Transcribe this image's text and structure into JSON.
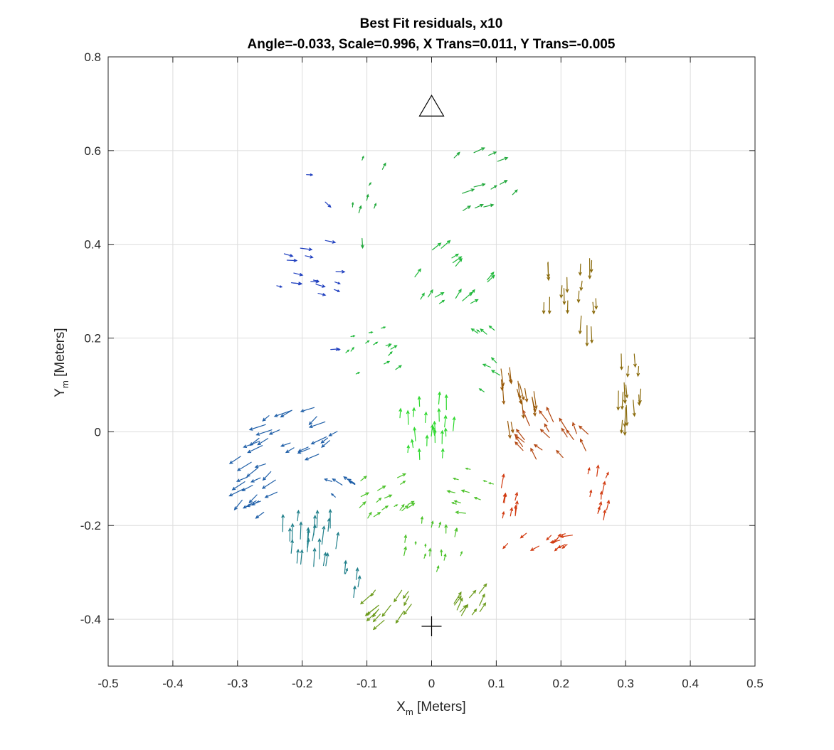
{
  "chart_data": {
    "type": "quiver",
    "title": "Best Fit residuals, x10",
    "subtitle": "Angle=-0.033, Scale=0.996, X Trans=0.011, Y Trans=-0.005",
    "xlabel_main": "X",
    "xlabel_sub": "m",
    "xlabel_unit": " [Meters]",
    "ylabel_main": "Y",
    "ylabel_sub": "m",
    "ylabel_unit": " [Meters]",
    "xlim": [
      -0.5,
      0.5
    ],
    "ylim": [
      -0.5,
      0.8
    ],
    "grid": true,
    "x_ticks": [
      -0.5,
      -0.4,
      -0.3,
      -0.2,
      -0.1,
      0,
      0.1,
      0.2,
      0.3,
      0.4,
      0.5
    ],
    "x_tick_labels": [
      "-0.5",
      "-0.4",
      "-0.3",
      "-0.2",
      "-0.1",
      "0",
      "0.1",
      "0.2",
      "0.3",
      "0.4",
      "0.5"
    ],
    "y_ticks": [
      -0.4,
      -0.2,
      0,
      0.2,
      0.4,
      0.6,
      0.8
    ],
    "y_tick_labels": [
      "-0.4",
      "-0.2",
      "0",
      "0.2",
      "0.4",
      "0.6",
      "0.8"
    ],
    "markers": [
      {
        "shape": "triangle",
        "x": 0.0,
        "y": 0.695,
        "color": "#000000"
      },
      {
        "shape": "plus",
        "x": 0.0,
        "y": -0.415,
        "color": "#000000"
      }
    ],
    "clusters": [
      {
        "color": "#1f3fbf",
        "cx": -0.195,
        "cy": 0.35,
        "rx": 0.07,
        "ry": 0.07,
        "du": 0.012,
        "dv": -0.002,
        "n": 16
      },
      {
        "color": "#1f3fbf",
        "cx": -0.16,
        "cy": 0.17,
        "rx": 0.015,
        "ry": 0.008,
        "du": 0.01,
        "dv": 0.0,
        "n": 2
      },
      {
        "color": "#1f3fbf",
        "cx": -0.19,
        "cy": 0.54,
        "rx": 0.01,
        "ry": 0.01,
        "du": 0.01,
        "dv": 0.0,
        "n": 1
      },
      {
        "color": "#1f3fbf",
        "cx": -0.17,
        "cy": 0.49,
        "rx": 0.01,
        "ry": 0.01,
        "du": 0.006,
        "dv": -0.008,
        "n": 1
      },
      {
        "color": "#1fa83a",
        "cx": -0.095,
        "cy": 0.52,
        "rx": 0.035,
        "ry": 0.08,
        "du": 0.003,
        "dv": 0.008,
        "n": 7
      },
      {
        "color": "#1fa83a",
        "cx": -0.11,
        "cy": 0.41,
        "rx": 0.01,
        "ry": 0.01,
        "du": 0.0,
        "dv": -0.012,
        "n": 1
      },
      {
        "color": "#1fa83a",
        "cx": 0.09,
        "cy": 0.53,
        "rx": 0.09,
        "ry": 0.07,
        "du": 0.012,
        "dv": 0.006,
        "n": 12
      },
      {
        "color": "#1fb83a",
        "cx": 0.03,
        "cy": 0.33,
        "rx": 0.07,
        "ry": 0.07,
        "du": 0.01,
        "dv": 0.01,
        "n": 16
      },
      {
        "color": "#1fb83a",
        "cx": -0.085,
        "cy": 0.16,
        "rx": 0.05,
        "ry": 0.09,
        "du": 0.006,
        "dv": 0.004,
        "n": 14
      },
      {
        "color": "#1fb83a",
        "cx": 0.08,
        "cy": 0.16,
        "rx": 0.03,
        "ry": 0.08,
        "du": -0.008,
        "dv": 0.006,
        "n": 8
      },
      {
        "color": "#2ed82e",
        "cx": 0.0,
        "cy": 0.0,
        "rx": 0.06,
        "ry": 0.065,
        "du": 0.0,
        "dv": 0.015,
        "n": 22
      },
      {
        "color": "#4cc22a",
        "cx": -0.085,
        "cy": -0.135,
        "rx": 0.06,
        "ry": 0.06,
        "du": 0.008,
        "dv": 0.006,
        "n": 16
      },
      {
        "color": "#4cc22a",
        "cx": 0.065,
        "cy": -0.13,
        "rx": 0.035,
        "ry": 0.055,
        "du": -0.01,
        "dv": 0.003,
        "n": 10
      },
      {
        "color": "#4cc22a",
        "cx": 0.0,
        "cy": -0.245,
        "rx": 0.055,
        "ry": 0.055,
        "du": 0.002,
        "dv": 0.01,
        "n": 16
      },
      {
        "color": "#6a9a1a",
        "cx": -0.065,
        "cy": -0.36,
        "rx": 0.035,
        "ry": 0.045,
        "du": -0.012,
        "dv": -0.014,
        "n": 14
      },
      {
        "color": "#6a9a1a",
        "cx": 0.055,
        "cy": -0.36,
        "rx": 0.025,
        "ry": 0.05,
        "du": 0.01,
        "dv": 0.014,
        "n": 10
      },
      {
        "color": "#1f5fa8",
        "cx": -0.2,
        "cy": 0.0,
        "rx": 0.075,
        "ry": 0.055,
        "du": -0.018,
        "dv": -0.008,
        "n": 22
      },
      {
        "color": "#1f5fa8",
        "cx": -0.28,
        "cy": -0.11,
        "rx": 0.05,
        "ry": 0.07,
        "du": -0.016,
        "dv": -0.01,
        "n": 18
      },
      {
        "color": "#1f5fa8",
        "cx": -0.14,
        "cy": -0.12,
        "rx": 0.025,
        "ry": 0.04,
        "du": -0.012,
        "dv": 0.008,
        "n": 6
      },
      {
        "color": "#1f7f8a",
        "cx": -0.19,
        "cy": -0.24,
        "rx": 0.05,
        "ry": 0.055,
        "du": 0.002,
        "dv": 0.022,
        "n": 22
      },
      {
        "color": "#1f7f8a",
        "cx": -0.125,
        "cy": -0.33,
        "rx": 0.015,
        "ry": 0.04,
        "du": 0.004,
        "dv": 0.014,
        "n": 5
      },
      {
        "color": "#8a6a0a",
        "cx": 0.22,
        "cy": 0.3,
        "rx": 0.06,
        "ry": 0.09,
        "du": 0.0,
        "dv": -0.022,
        "n": 18
      },
      {
        "color": "#8a6a0a",
        "cx": 0.3,
        "cy": 0.11,
        "rx": 0.025,
        "ry": 0.09,
        "du": 0.0,
        "dv": -0.022,
        "n": 16
      },
      {
        "color": "#9a5a0a",
        "cx": 0.135,
        "cy": 0.1,
        "rx": 0.03,
        "ry": 0.1,
        "du": 0.004,
        "dv": -0.022,
        "n": 16
      },
      {
        "color": "#b2450f",
        "cx": 0.19,
        "cy": -0.02,
        "rx": 0.055,
        "ry": 0.05,
        "du": -0.01,
        "dv": 0.016,
        "n": 18
      },
      {
        "color": "#d13a10",
        "cx": 0.115,
        "cy": -0.15,
        "rx": 0.02,
        "ry": 0.05,
        "du": 0.002,
        "dv": 0.016,
        "n": 8
      },
      {
        "color": "#d13a10",
        "cx": 0.17,
        "cy": -0.23,
        "rx": 0.06,
        "ry": 0.02,
        "du": -0.012,
        "dv": -0.006,
        "n": 12
      },
      {
        "color": "#d13a10",
        "cx": 0.255,
        "cy": -0.13,
        "rx": 0.025,
        "ry": 0.07,
        "du": 0.003,
        "dv": 0.014,
        "n": 10
      }
    ]
  }
}
